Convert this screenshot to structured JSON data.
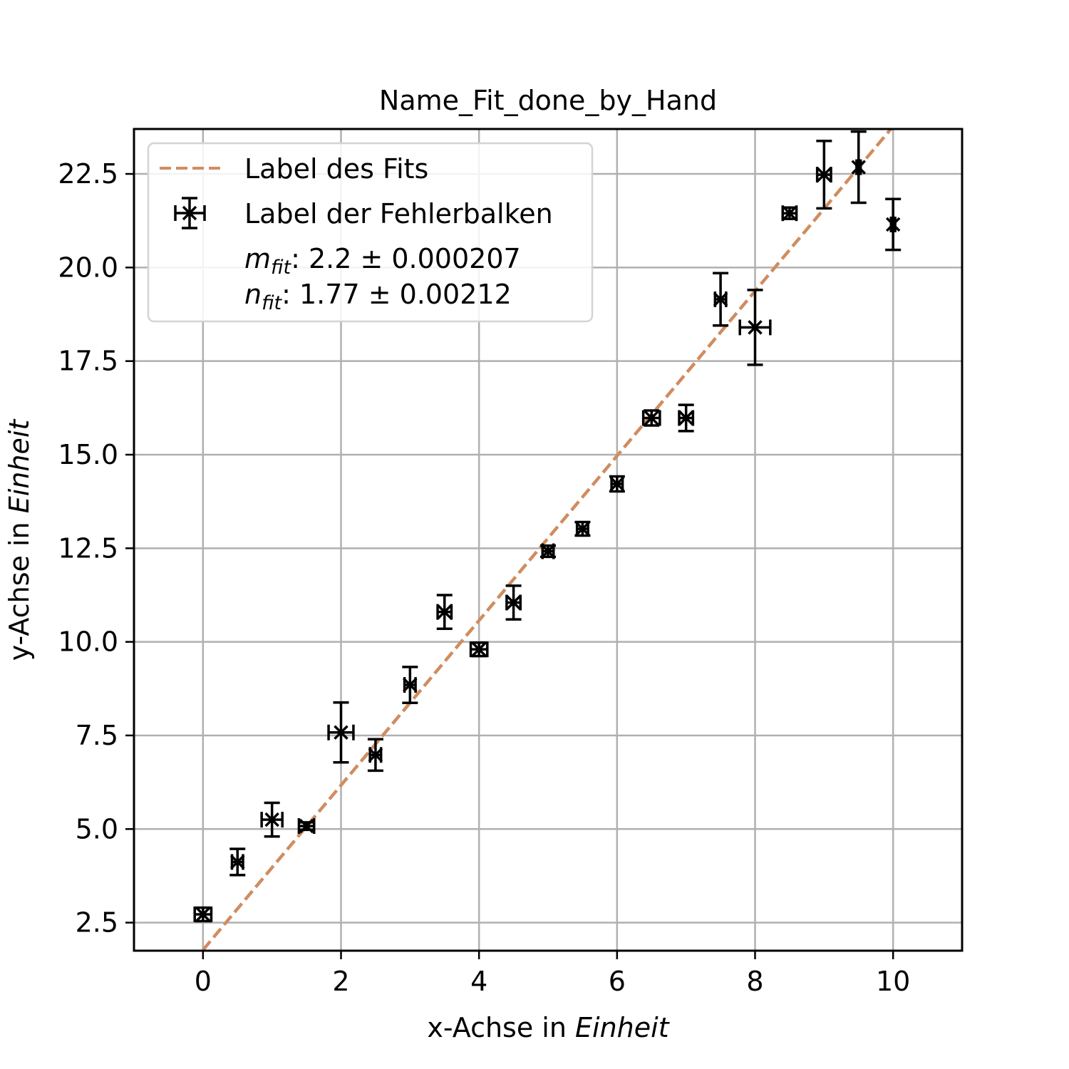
{
  "chart_data": {
    "type": "scatter",
    "title": "Name_Fit_done_by_Hand",
    "xlabel": {
      "prefix": "x-Achse in ",
      "unit": "Einheit"
    },
    "ylabel": {
      "prefix": "y-Achse in ",
      "unit": "Einheit"
    },
    "xlim": [
      -1.0,
      11.0
    ],
    "ylim": [
      1.75,
      23.7
    ],
    "x_ticks": [
      0,
      2,
      4,
      6,
      8,
      10
    ],
    "x_tick_labels": [
      "0",
      "2",
      "4",
      "6",
      "8",
      "10"
    ],
    "y_ticks": [
      2.5,
      5.0,
      7.5,
      10.0,
      12.5,
      15.0,
      17.5,
      20.0,
      22.5
    ],
    "y_tick_labels": [
      "2.5",
      "5.0",
      "7.5",
      "10.0",
      "12.5",
      "15.0",
      "17.5",
      "20.0",
      "22.5"
    ],
    "grid": true,
    "legend_position": "top-left",
    "fit": {
      "name": "Label des Fits",
      "slope": 2.2,
      "intercept": 1.77,
      "x_range": [
        0,
        10
      ],
      "color": "#d08c60",
      "style": "dashed"
    },
    "errorbar_series": {
      "name": "Label der Fehlerbalken",
      "color": "#000000",
      "marker": "x",
      "points": [
        {
          "x": 0.0,
          "y": 2.72,
          "xerr": 0.12,
          "yerr": 0.18
        },
        {
          "x": 0.5,
          "y": 4.12,
          "xerr": 0.08,
          "yerr": 0.35
        },
        {
          "x": 1.0,
          "y": 5.25,
          "xerr": 0.15,
          "yerr": 0.45
        },
        {
          "x": 1.5,
          "y": 5.08,
          "xerr": 0.11,
          "yerr": 0.1
        },
        {
          "x": 2.0,
          "y": 7.58,
          "xerr": 0.18,
          "yerr": 0.8
        },
        {
          "x": 2.5,
          "y": 6.98,
          "xerr": 0.08,
          "yerr": 0.42
        },
        {
          "x": 3.0,
          "y": 8.85,
          "xerr": 0.08,
          "yerr": 0.48
        },
        {
          "x": 3.5,
          "y": 10.8,
          "xerr": 0.1,
          "yerr": 0.45
        },
        {
          "x": 4.0,
          "y": 9.8,
          "xerr": 0.12,
          "yerr": 0.18
        },
        {
          "x": 4.5,
          "y": 11.05,
          "xerr": 0.1,
          "yerr": 0.45
        },
        {
          "x": 5.0,
          "y": 12.42,
          "xerr": 0.08,
          "yerr": 0.15
        },
        {
          "x": 5.5,
          "y": 13.02,
          "xerr": 0.08,
          "yerr": 0.18
        },
        {
          "x": 6.0,
          "y": 14.22,
          "xerr": 0.08,
          "yerr": 0.2
        },
        {
          "x": 6.5,
          "y": 15.98,
          "xerr": 0.12,
          "yerr": 0.2
        },
        {
          "x": 7.0,
          "y": 15.98,
          "xerr": 0.1,
          "yerr": 0.35
        },
        {
          "x": 7.5,
          "y": 19.15,
          "xerr": 0.08,
          "yerr": 0.7
        },
        {
          "x": 8.0,
          "y": 18.4,
          "xerr": 0.22,
          "yerr": 1.0
        },
        {
          "x": 8.5,
          "y": 21.45,
          "xerr": 0.1,
          "yerr": 0.15
        },
        {
          "x": 9.0,
          "y": 22.48,
          "xerr": 0.1,
          "yerr": 0.9
        },
        {
          "x": 9.5,
          "y": 22.68,
          "xerr": 0.03,
          "yerr": 0.95
        },
        {
          "x": 10.0,
          "y": 21.15,
          "xerr": 0.03,
          "yerr": 0.68
        }
      ]
    },
    "annotations": [
      {
        "symbol": "m",
        "subscript": "fit",
        "text": ": 2.2 ± 0.000207"
      },
      {
        "symbol": "n",
        "subscript": "fit",
        "text": ": 1.77 ± 0.00212"
      }
    ]
  }
}
